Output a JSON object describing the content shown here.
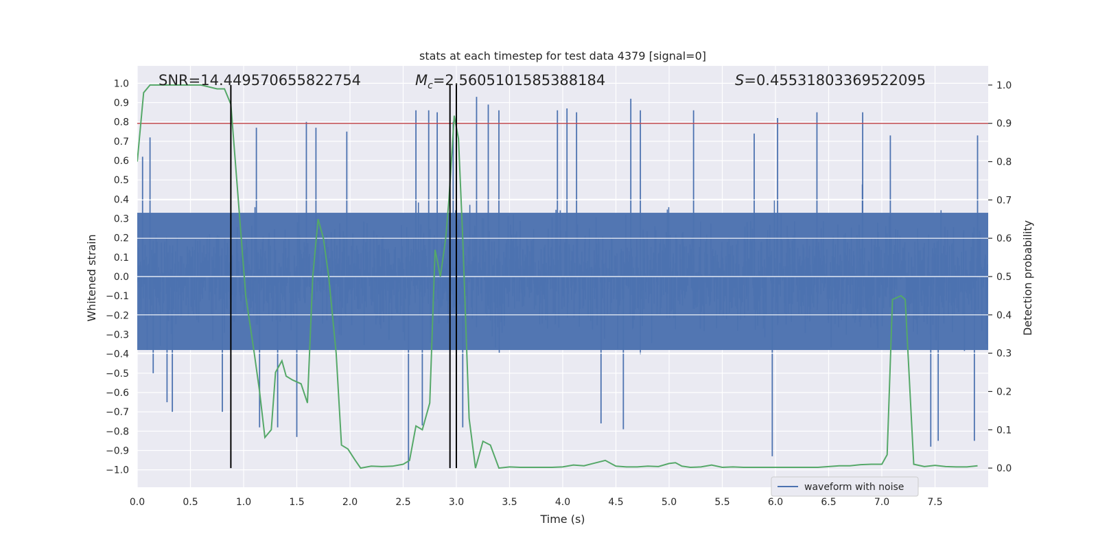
{
  "chart_data": {
    "type": "line",
    "title": "stats at each timestep for test data 4379 [signal=0]",
    "xlabel": "Time (s)",
    "ylabel": "Whitened strain",
    "y2label": "Detection probability",
    "xlim": [
      0.0,
      8.0
    ],
    "ylim": [
      -1.09,
      1.09
    ],
    "y2lim": [
      -0.05,
      1.05
    ],
    "xticks": [
      "0.0",
      "0.5",
      "1.0",
      "1.5",
      "2.0",
      "2.5",
      "3.0",
      "3.5",
      "4.0",
      "4.5",
      "5.0",
      "5.5",
      "6.0",
      "6.5",
      "7.0",
      "7.5"
    ],
    "yticks": [
      "1.0",
      "0.9",
      "0.8",
      "0.7",
      "0.6",
      "0.5",
      "0.4",
      "0.3",
      "0.2",
      "0.1",
      "0.0",
      "−0.1",
      "−0.2",
      "−0.3",
      "−0.4",
      "−0.5",
      "−0.6",
      "−0.7",
      "−0.8",
      "−0.9",
      "−1.0"
    ],
    "y2ticks": [
      "1.0",
      "0.9",
      "0.8",
      "0.7",
      "0.6",
      "0.5",
      "0.4",
      "0.3",
      "0.2",
      "0.1",
      "0.0"
    ],
    "annotations": {
      "snr": "SNR=14.449570655822754",
      "mc_symbol": "M",
      "mc_sub": "c",
      "mc_value": "=2.5605101585388184",
      "s_symbol": "S",
      "s_value": "=0.45531803369522095"
    },
    "threshold_line": {
      "axis": "right",
      "value": 0.9,
      "color": "#c44e52"
    },
    "vertical_lines": [
      0.88,
      2.94,
      3.0
    ],
    "legend": {
      "position": "lower-right",
      "entries": [
        "waveform with noise"
      ]
    },
    "series": [
      {
        "name": "waveform with noise",
        "axis": "left",
        "color": "#4c72b0",
        "kind": "noise",
        "typical_amplitude": 0.45,
        "peak_events": [
          {
            "x": 0.05,
            "y": 0.62
          },
          {
            "x": 0.12,
            "y": 0.72
          },
          {
            "x": 0.15,
            "y": -0.5
          },
          {
            "x": 0.28,
            "y": -0.65
          },
          {
            "x": 0.33,
            "y": -0.7
          },
          {
            "x": 0.8,
            "y": -0.7
          },
          {
            "x": 1.12,
            "y": 0.77
          },
          {
            "x": 1.15,
            "y": -0.78
          },
          {
            "x": 1.32,
            "y": -0.78
          },
          {
            "x": 1.5,
            "y": -0.83
          },
          {
            "x": 1.59,
            "y": 0.8
          },
          {
            "x": 1.68,
            "y": 0.77
          },
          {
            "x": 1.97,
            "y": 0.75
          },
          {
            "x": 2.55,
            "y": -1.0
          },
          {
            "x": 2.62,
            "y": 0.86
          },
          {
            "x": 2.68,
            "y": -0.77
          },
          {
            "x": 2.74,
            "y": 0.86
          },
          {
            "x": 2.82,
            "y": 0.85
          },
          {
            "x": 2.97,
            "y": 0.8
          },
          {
            "x": 3.06,
            "y": -0.78
          },
          {
            "x": 3.19,
            "y": 0.93
          },
          {
            "x": 3.3,
            "y": 0.89
          },
          {
            "x": 3.4,
            "y": 0.86
          },
          {
            "x": 3.95,
            "y": 0.86
          },
          {
            "x": 4.04,
            "y": 0.87
          },
          {
            "x": 4.13,
            "y": 0.85
          },
          {
            "x": 4.36,
            "y": -0.76
          },
          {
            "x": 4.64,
            "y": 0.92
          },
          {
            "x": 4.57,
            "y": -0.79
          },
          {
            "x": 4.73,
            "y": 0.86
          },
          {
            "x": 5.23,
            "y": 0.86
          },
          {
            "x": 5.8,
            "y": 0.74
          },
          {
            "x": 5.97,
            "y": -0.93
          },
          {
            "x": 6.02,
            "y": 0.82
          },
          {
            "x": 6.39,
            "y": 0.85
          },
          {
            "x": 6.82,
            "y": 0.85
          },
          {
            "x": 7.08,
            "y": 0.73
          },
          {
            "x": 7.46,
            "y": -0.88
          },
          {
            "x": 7.53,
            "y": -0.85
          },
          {
            "x": 7.87,
            "y": -0.85
          },
          {
            "x": 7.9,
            "y": 0.73
          }
        ]
      },
      {
        "name": "detection probability",
        "axis": "right",
        "color": "#55a868",
        "x": [
          0.0,
          0.06,
          0.12,
          0.2,
          0.4,
          0.6,
          0.75,
          0.82,
          0.88,
          0.95,
          1.02,
          1.1,
          1.15,
          1.2,
          1.26,
          1.3,
          1.36,
          1.4,
          1.46,
          1.54,
          1.6,
          1.65,
          1.7,
          1.75,
          1.8,
          1.87,
          1.92,
          1.98,
          2.05,
          2.1,
          2.2,
          2.3,
          2.4,
          2.5,
          2.56,
          2.62,
          2.68,
          2.75,
          2.8,
          2.85,
          2.9,
          2.93,
          2.98,
          3.02,
          3.06,
          3.12,
          3.18,
          3.25,
          3.32,
          3.4,
          3.5,
          3.6,
          3.7,
          3.8,
          3.9,
          4.0,
          4.1,
          4.2,
          4.3,
          4.4,
          4.5,
          4.6,
          4.7,
          4.8,
          4.9,
          5.0,
          5.06,
          5.12,
          5.2,
          5.3,
          5.4,
          5.5,
          5.6,
          5.7,
          5.8,
          6.0,
          6.2,
          6.4,
          6.5,
          6.6,
          6.7,
          6.8,
          6.9,
          7.0,
          7.05,
          7.1,
          7.18,
          7.22,
          7.3,
          7.4,
          7.5,
          7.6,
          7.7,
          7.8,
          7.9
        ],
        "y": [
          0.8,
          0.98,
          1.0,
          1.0,
          1.0,
          1.0,
          0.99,
          0.99,
          0.95,
          0.7,
          0.45,
          0.3,
          0.2,
          0.08,
          0.1,
          0.25,
          0.28,
          0.24,
          0.23,
          0.22,
          0.17,
          0.5,
          0.65,
          0.6,
          0.5,
          0.3,
          0.06,
          0.05,
          0.02,
          0.0,
          0.005,
          0.004,
          0.005,
          0.01,
          0.02,
          0.11,
          0.1,
          0.17,
          0.57,
          0.5,
          0.6,
          0.7,
          0.92,
          0.86,
          0.6,
          0.13,
          0.0,
          0.07,
          0.06,
          0.0,
          0.003,
          0.002,
          0.002,
          0.002,
          0.002,
          0.003,
          0.008,
          0.006,
          0.013,
          0.02,
          0.005,
          0.003,
          0.003,
          0.005,
          0.004,
          0.012,
          0.014,
          0.005,
          0.002,
          0.003,
          0.008,
          0.002,
          0.003,
          0.002,
          0.002,
          0.002,
          0.002,
          0.002,
          0.004,
          0.006,
          0.006,
          0.009,
          0.01,
          0.01,
          0.035,
          0.44,
          0.45,
          0.44,
          0.01,
          0.004,
          0.007,
          0.004,
          0.003,
          0.003,
          0.006
        ]
      }
    ]
  }
}
